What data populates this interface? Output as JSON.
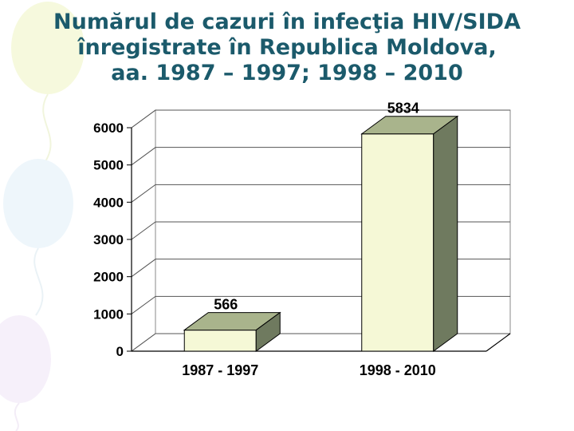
{
  "title_lines": [
    "Numărul de cazuri în infecţia HIV/SIDA",
    "înregistrate în Republica Moldova,",
    "aa. 1987 – 1997; 1998 – 2010"
  ],
  "colors": {
    "title": "#1b5a6b",
    "bar_front": "#f5f8d6",
    "bar_top": "#a9b48c",
    "bar_side": "#6f7a5f",
    "axis": "#000000"
  },
  "chart_data": {
    "type": "bar",
    "bar_style": "3d",
    "categories": [
      "1987 - 1997",
      "1998 - 2010"
    ],
    "values": [
      566,
      5834
    ],
    "data_labels": [
      "566",
      "5834"
    ],
    "yticks": [
      0,
      1000,
      2000,
      3000,
      4000,
      5000,
      6000
    ],
    "ylim": [
      0,
      6000
    ],
    "grid": true,
    "legend": false
  }
}
